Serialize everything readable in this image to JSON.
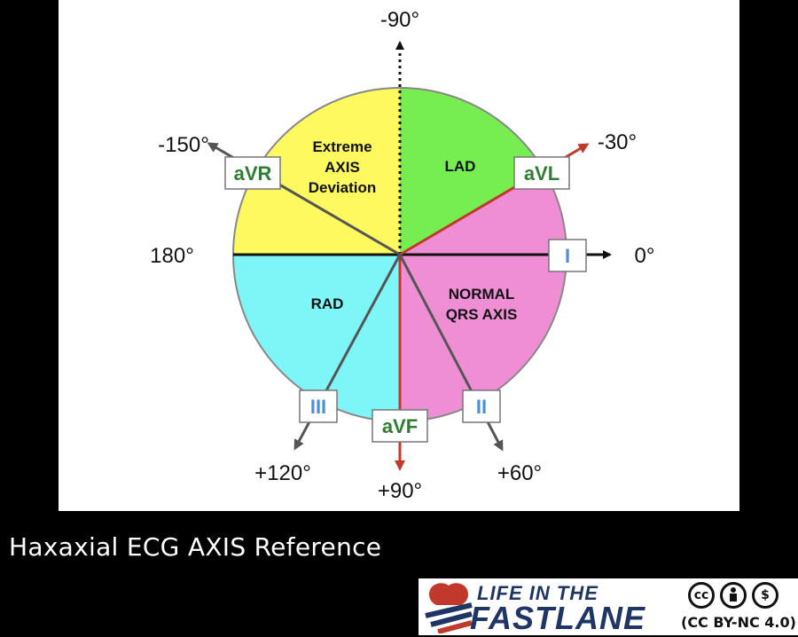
{
  "diagram": {
    "angles": {
      "top": "-90°",
      "neg150": "-150°",
      "neg30": "-30°",
      "a180": "180°",
      "a0": "0°",
      "pos120": "+120°",
      "pos90": "+90°",
      "pos60": "+60°"
    },
    "regions": {
      "extreme_line1": "Extreme",
      "extreme_line2": "AXIS",
      "extreme_line3": "Deviation",
      "lad": "LAD",
      "rad": "RAD",
      "normal_line1": "NORMAL",
      "normal_line2": "QRS AXIS"
    },
    "leads": {
      "avr": "aVR",
      "avl": "aVL",
      "i": "I",
      "ii": "II",
      "iii": "III",
      "avf": "aVF"
    },
    "colors": {
      "extreme": "#fdf95e",
      "lad": "#76ee52",
      "normal": "#ef8ed4",
      "rad": "#7ef5f7",
      "augmented_lead_text": "#2e7d32",
      "limb_lead_text": "#4a90d9",
      "normal_axis_arrow": "#c0392b"
    }
  },
  "caption": "Haxaxial ECG AXIS Reference",
  "logo": {
    "line1": "LIFE IN THE",
    "line2": "FASTLANE",
    "license": "(CC BY-NC 4.0)",
    "icons": [
      "cc-icon",
      "by-icon",
      "nc-icon"
    ]
  }
}
